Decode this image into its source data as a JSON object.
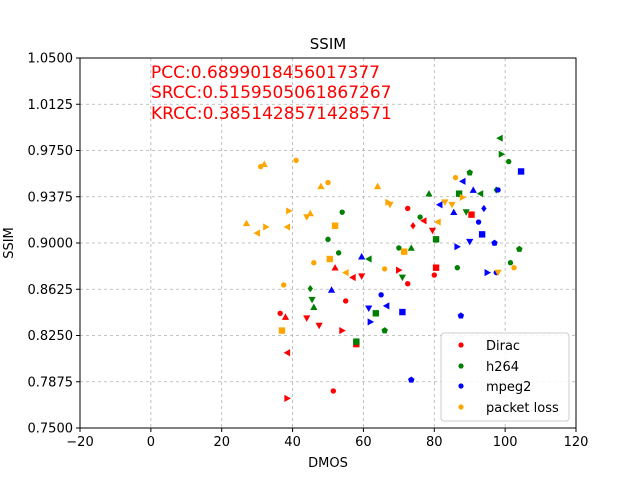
{
  "chart_data": {
    "type": "scatter",
    "title": "SSIM",
    "xlabel": "DMOS",
    "ylabel": "SSIM",
    "xlim": [
      -20,
      120
    ],
    "ylim": [
      0.75,
      1.05
    ],
    "xticks": [
      -20,
      0,
      20,
      40,
      60,
      80,
      100,
      120
    ],
    "yticks": [
      0.75,
      0.7875,
      0.825,
      0.8625,
      0.9,
      0.9375,
      0.975,
      1.0125,
      1.05
    ],
    "xtick_labels": [
      "−20",
      "0",
      "20",
      "40",
      "60",
      "80",
      "100",
      "120"
    ],
    "ytick_labels": [
      "0.7500",
      "0.7875",
      "0.8250",
      "0.8625",
      "0.9000",
      "0.9375",
      "0.9750",
      "1.0125",
      "1.0500"
    ],
    "grid": true,
    "legend_position": "lower-right",
    "annotations": [
      "PCC:0.6899018456017377",
      "SRCC:0.5159505061867267",
      "KRCC:0.3851428571428571"
    ],
    "annotation_color": "#ff0000",
    "series": [
      {
        "name": "Dirac",
        "color": "#ff0000",
        "points": [
          {
            "x": 36.5,
            "y": 0.843,
            "m": "circle"
          },
          {
            "x": 38.0,
            "y": 0.84,
            "m": "tri-up"
          },
          {
            "x": 38.5,
            "y": 0.811,
            "m": "tri-left"
          },
          {
            "x": 38.5,
            "y": 0.774,
            "m": "tri-right"
          },
          {
            "x": 44.0,
            "y": 0.839,
            "m": "tri-down"
          },
          {
            "x": 47.5,
            "y": 0.833,
            "m": "tri-down"
          },
          {
            "x": 51.5,
            "y": 0.78,
            "m": "circle"
          },
          {
            "x": 52.0,
            "y": 0.88,
            "m": "tri-up"
          },
          {
            "x": 54.0,
            "y": 0.829,
            "m": "tri-right"
          },
          {
            "x": 55.0,
            "y": 0.853,
            "m": "circle"
          },
          {
            "x": 57.0,
            "y": 0.872,
            "m": "tri-left"
          },
          {
            "x": 58.0,
            "y": 0.818,
            "m": "square"
          },
          {
            "x": 59.5,
            "y": 0.873,
            "m": "tri-down"
          },
          {
            "x": 70.0,
            "y": 0.878,
            "m": "tri-right"
          },
          {
            "x": 72.5,
            "y": 0.928,
            "m": "circle"
          },
          {
            "x": 72.5,
            "y": 0.867,
            "m": "circle"
          },
          {
            "x": 74.0,
            "y": 0.914,
            "m": "diamond"
          },
          {
            "x": 77.0,
            "y": 0.918,
            "m": "tri-left"
          },
          {
            "x": 79.5,
            "y": 0.91,
            "m": "tri-down"
          },
          {
            "x": 80.0,
            "y": 0.874,
            "m": "circle"
          },
          {
            "x": 80.5,
            "y": 0.88,
            "m": "square"
          },
          {
            "x": 90.5,
            "y": 0.923,
            "m": "square"
          }
        ]
      },
      {
        "name": "h264",
        "color": "#008000",
        "points": [
          {
            "x": 45.0,
            "y": 0.863,
            "m": "diamond"
          },
          {
            "x": 45.5,
            "y": 0.854,
            "m": "tri-down"
          },
          {
            "x": 46.0,
            "y": 0.848,
            "m": "tri-up"
          },
          {
            "x": 50.0,
            "y": 0.903,
            "m": "circle"
          },
          {
            "x": 53.0,
            "y": 0.892,
            "m": "circle"
          },
          {
            "x": 54.0,
            "y": 0.925,
            "m": "circle"
          },
          {
            "x": 58.0,
            "y": 0.82,
            "m": "square"
          },
          {
            "x": 61.5,
            "y": 0.887,
            "m": "tri-left"
          },
          {
            "x": 63.5,
            "y": 0.843,
            "m": "square"
          },
          {
            "x": 66.0,
            "y": 0.829,
            "m": "pentagon"
          },
          {
            "x": 70.0,
            "y": 0.896,
            "m": "circle"
          },
          {
            "x": 71.0,
            "y": 0.872,
            "m": "tri-down"
          },
          {
            "x": 73.5,
            "y": 0.896,
            "m": "tri-up"
          },
          {
            "x": 76.0,
            "y": 0.921,
            "m": "circle"
          },
          {
            "x": 78.5,
            "y": 0.94,
            "m": "tri-up"
          },
          {
            "x": 80.5,
            "y": 0.903,
            "m": "square"
          },
          {
            "x": 86.5,
            "y": 0.88,
            "m": "circle"
          },
          {
            "x": 87.0,
            "y": 0.94,
            "m": "square"
          },
          {
            "x": 89.0,
            "y": 0.925,
            "m": "tri-down"
          },
          {
            "x": 90.0,
            "y": 0.957,
            "m": "pentagon"
          },
          {
            "x": 93.0,
            "y": 0.94,
            "m": "tri-left"
          },
          {
            "x": 97.5,
            "y": 0.943,
            "m": "diamond"
          },
          {
            "x": 98.5,
            "y": 0.985,
            "m": "tri-left"
          },
          {
            "x": 99.0,
            "y": 0.972,
            "m": "tri-right"
          },
          {
            "x": 101.0,
            "y": 0.966,
            "m": "circle"
          },
          {
            "x": 101.5,
            "y": 0.884,
            "m": "circle"
          },
          {
            "x": 104.0,
            "y": 0.895,
            "m": "pentagon"
          }
        ]
      },
      {
        "name": "mpeg2",
        "color": "#0000ff",
        "points": [
          {
            "x": 51.0,
            "y": 0.862,
            "m": "tri-up"
          },
          {
            "x": 59.5,
            "y": 0.889,
            "m": "tri-up"
          },
          {
            "x": 61.5,
            "y": 0.847,
            "m": "tri-down"
          },
          {
            "x": 62.0,
            "y": 0.836,
            "m": "tri-right"
          },
          {
            "x": 65.0,
            "y": 0.858,
            "m": "circle"
          },
          {
            "x": 66.5,
            "y": 0.849,
            "m": "tri-left"
          },
          {
            "x": 71.0,
            "y": 0.844,
            "m": "square"
          },
          {
            "x": 73.5,
            "y": 0.789,
            "m": "pentagon"
          },
          {
            "x": 81.5,
            "y": 0.931,
            "m": "tri-left"
          },
          {
            "x": 85.5,
            "y": 0.925,
            "m": "tri-up"
          },
          {
            "x": 86.5,
            "y": 0.897,
            "m": "tri-right"
          },
          {
            "x": 87.5,
            "y": 0.841,
            "m": "pentagon"
          },
          {
            "x": 88.0,
            "y": 0.95,
            "m": "tri-left"
          },
          {
            "x": 90.0,
            "y": 0.901,
            "m": "tri-down"
          },
          {
            "x": 91.0,
            "y": 0.943,
            "m": "tri-up"
          },
          {
            "x": 92.5,
            "y": 0.917,
            "m": "circle"
          },
          {
            "x": 93.5,
            "y": 0.907,
            "m": "square"
          },
          {
            "x": 94.0,
            "y": 0.928,
            "m": "diamond"
          },
          {
            "x": 95.0,
            "y": 0.876,
            "m": "tri-right"
          },
          {
            "x": 97.0,
            "y": 0.9,
            "m": "pentagon"
          },
          {
            "x": 97.5,
            "y": 0.876,
            "m": "circle"
          },
          {
            "x": 98.0,
            "y": 0.943,
            "m": "circle"
          },
          {
            "x": 104.5,
            "y": 0.958,
            "m": "square"
          }
        ]
      },
      {
        "name": "packet loss",
        "color": "#ffa500",
        "points": [
          {
            "x": 27.0,
            "y": 0.916,
            "m": "tri-up"
          },
          {
            "x": 30.0,
            "y": 0.908,
            "m": "tri-left"
          },
          {
            "x": 31.0,
            "y": 0.962,
            "m": "circle"
          },
          {
            "x": 32.0,
            "y": 0.964,
            "m": "tri-up"
          },
          {
            "x": 32.5,
            "y": 0.913,
            "m": "tri-right"
          },
          {
            "x": 37.0,
            "y": 0.829,
            "m": "square"
          },
          {
            "x": 37.5,
            "y": 0.866,
            "m": "circle"
          },
          {
            "x": 38.5,
            "y": 0.913,
            "m": "tri-left"
          },
          {
            "x": 39.0,
            "y": 0.926,
            "m": "tri-right"
          },
          {
            "x": 41.0,
            "y": 0.967,
            "m": "circle"
          },
          {
            "x": 44.0,
            "y": 0.921,
            "m": "tri-down"
          },
          {
            "x": 45.0,
            "y": 0.924,
            "m": "tri-up"
          },
          {
            "x": 46.0,
            "y": 0.884,
            "m": "circle"
          },
          {
            "x": 48.0,
            "y": 0.946,
            "m": "tri-up"
          },
          {
            "x": 50.0,
            "y": 0.949,
            "m": "circle"
          },
          {
            "x": 50.5,
            "y": 0.887,
            "m": "square"
          },
          {
            "x": 52.0,
            "y": 0.914,
            "m": "square"
          },
          {
            "x": 55.0,
            "y": 0.876,
            "m": "tri-left"
          },
          {
            "x": 64.0,
            "y": 0.946,
            "m": "tri-up"
          },
          {
            "x": 66.0,
            "y": 0.879,
            "m": "circle"
          },
          {
            "x": 67.0,
            "y": 0.933,
            "m": "tri-right"
          },
          {
            "x": 67.5,
            "y": 0.931,
            "m": "tri-down"
          },
          {
            "x": 71.5,
            "y": 0.893,
            "m": "square"
          },
          {
            "x": 81.0,
            "y": 0.917,
            "m": "tri-left"
          },
          {
            "x": 83.0,
            "y": 0.933,
            "m": "tri-down"
          },
          {
            "x": 85.0,
            "y": 0.931,
            "m": "tri-down"
          },
          {
            "x": 86.0,
            "y": 0.953,
            "m": "circle"
          },
          {
            "x": 88.0,
            "y": 0.937,
            "m": "tri-right"
          },
          {
            "x": 98.0,
            "y": 0.876,
            "m": "tri-down"
          },
          {
            "x": 102.5,
            "y": 0.88,
            "m": "circle"
          }
        ]
      }
    ]
  }
}
